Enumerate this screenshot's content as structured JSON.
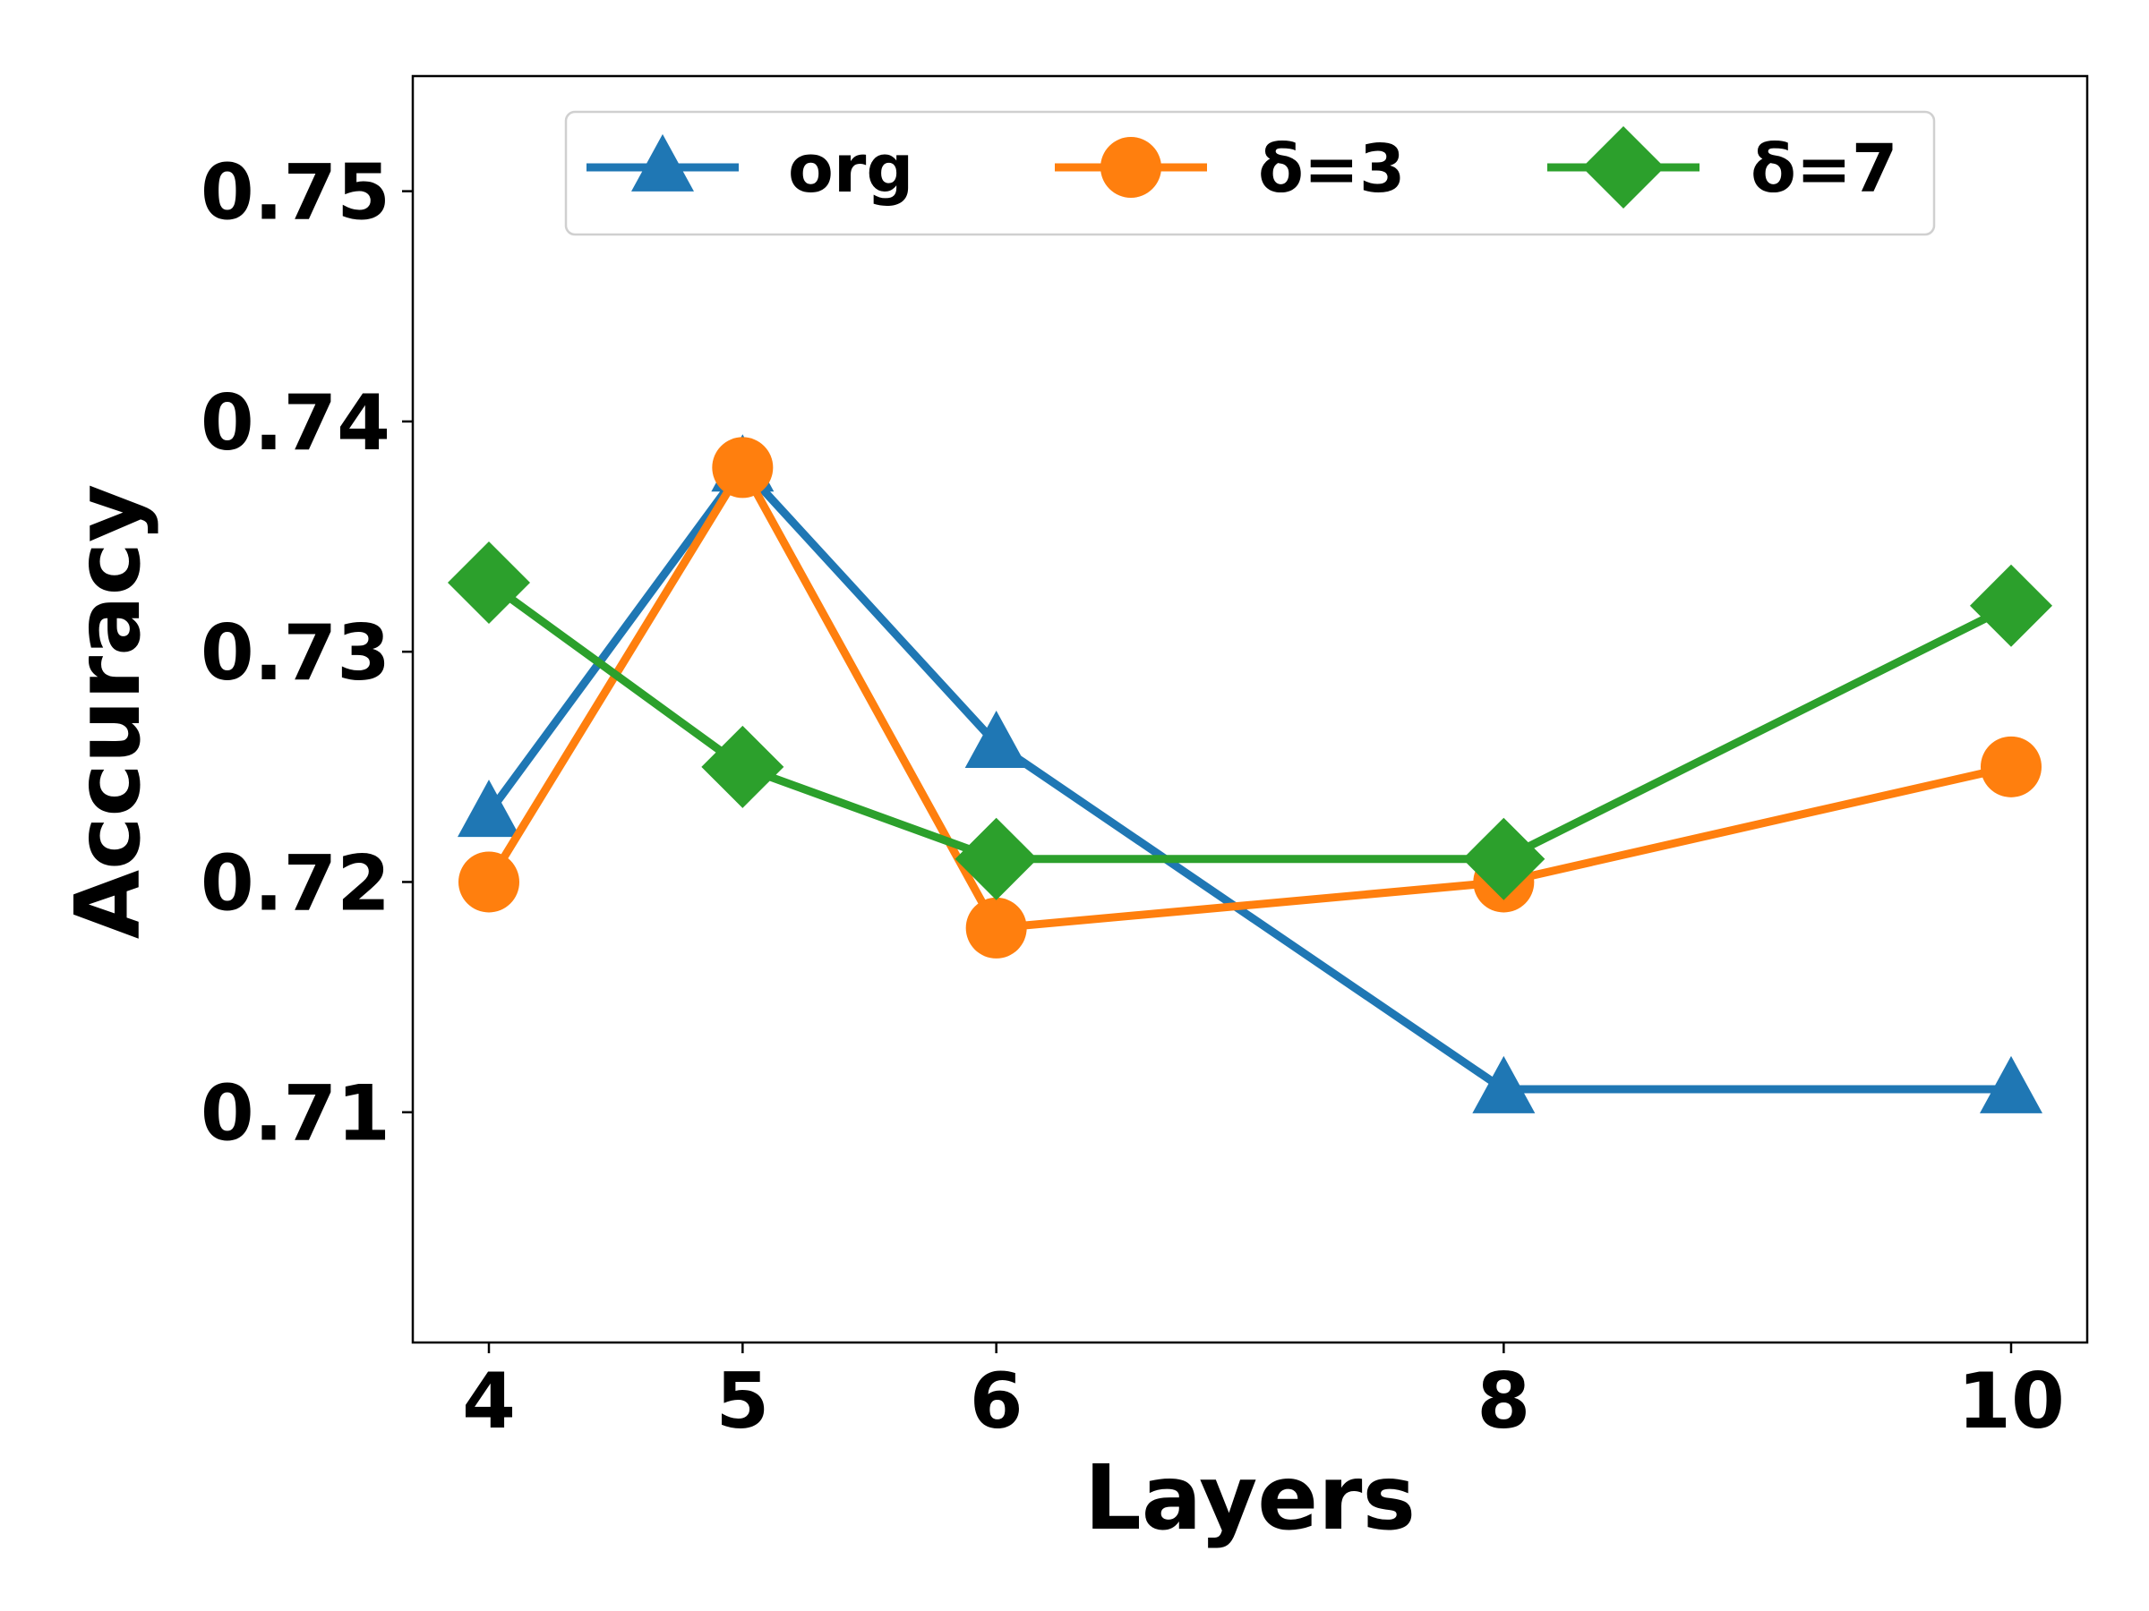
{
  "chart_data": {
    "type": "line",
    "title": "",
    "xlabel": "Layers",
    "ylabel": "Accuracy",
    "x": [
      4,
      5,
      6,
      8,
      10
    ],
    "x_tick_labels": [
      "4",
      "5",
      "6",
      "8",
      "10"
    ],
    "xlim": [
      3.7,
      10.3
    ],
    "ylim": [
      0.7,
      0.755
    ],
    "y_ticks": [
      0.71,
      0.72,
      0.73,
      0.74,
      0.75
    ],
    "y_tick_labels": [
      "0.71",
      "0.72",
      "0.73",
      "0.74",
      "0.75"
    ],
    "grid": false,
    "legend_position": "top-center",
    "series": [
      {
        "name": "org",
        "values": [
          0.723,
          0.738,
          0.726,
          0.711,
          0.711
        ],
        "color": "#1f77b4",
        "marker": "triangle"
      },
      {
        "name": "δ=3",
        "values": [
          0.72,
          0.738,
          0.718,
          0.72,
          0.725
        ],
        "color": "#ff7f0e",
        "marker": "circle"
      },
      {
        "name": "δ=7",
        "values": [
          0.733,
          0.725,
          0.721,
          0.721,
          0.732
        ],
        "color": "#2ca02c",
        "marker": "diamond"
      }
    ]
  }
}
